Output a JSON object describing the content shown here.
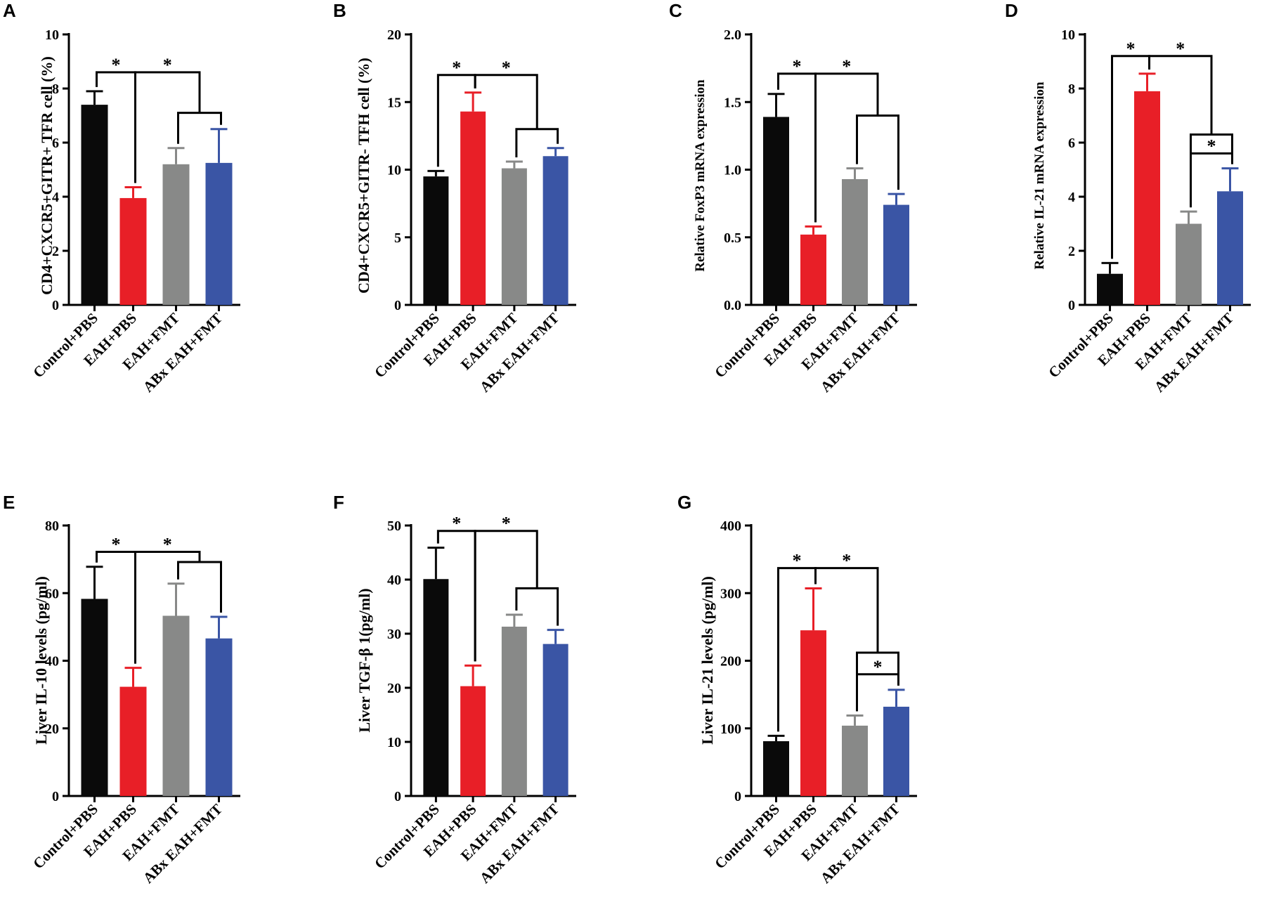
{
  "figure": {
    "colors": {
      "Control+PBS": "#0a0a0a",
      "EAH+PBS": "#e81f27",
      "EAH+FMT": "#888988",
      "ABx EAH+FMT": "#3a55a5"
    }
  },
  "chart_data": [
    {
      "type": "bar",
      "panel": "A",
      "ylabel": "CD4+CXCR5+GITR+ TFR cell (%)",
      "categories": [
        "Control+PBS",
        "EAH+PBS",
        "EAH+FMT",
        "ABx EAH+FMT"
      ],
      "values": [
        7.4,
        3.95,
        5.2,
        5.25
      ],
      "errors": [
        0.5,
        0.4,
        0.6,
        1.25
      ],
      "ylim": [
        0,
        10
      ],
      "ticks": [
        0,
        2,
        4,
        6,
        8,
        10
      ],
      "tick_labels": [
        "0",
        "2",
        "4",
        "6",
        "8",
        "10"
      ],
      "brackets": [
        {
          "from": 0,
          "to": 1,
          "y": 8.6,
          "label": "*"
        },
        {
          "from": 1,
          "to": [
            2,
            3
          ],
          "y": 8.6,
          "inner_y": 7.1,
          "label": "*"
        }
      ]
    },
    {
      "type": "bar",
      "panel": "B",
      "ylabel": "CD4+CXCR5+GITR- TFH cell (%)",
      "categories": [
        "Control+PBS",
        "EAH+PBS",
        "EAH+FMT",
        "ABx EAH+FMT"
      ],
      "values": [
        9.5,
        14.3,
        10.1,
        11.0
      ],
      "errors": [
        0.4,
        1.4,
        0.5,
        0.6
      ],
      "ylim": [
        0,
        20
      ],
      "ticks": [
        0,
        5,
        10,
        15,
        20
      ],
      "tick_labels": [
        "0",
        "5",
        "10",
        "15",
        "20"
      ],
      "brackets": [
        {
          "from": 0,
          "to": 1,
          "y": 17.0,
          "label": "*"
        },
        {
          "from": 1,
          "to": [
            2,
            3
          ],
          "y": 17.0,
          "inner_y": 13.0,
          "label": "*"
        }
      ]
    },
    {
      "type": "bar",
      "panel": "C",
      "ylabel": "Relative FoxP3 mRNA expression",
      "categories": [
        "Control+PBS",
        "EAH+PBS",
        "EAH+FMT",
        "ABx EAH+FMT"
      ],
      "values": [
        1.39,
        0.52,
        0.93,
        0.74
      ],
      "errors": [
        0.17,
        0.06,
        0.08,
        0.08
      ],
      "ylim": [
        0,
        2.0
      ],
      "ticks": [
        0,
        0.5,
        1.0,
        1.5,
        2.0
      ],
      "tick_labels": [
        "0.0",
        "0.5",
        "1.0",
        "1.5",
        "2.0"
      ],
      "brackets": [
        {
          "from": 0,
          "to": 1,
          "y": 1.71,
          "label": "*"
        },
        {
          "from": 1,
          "to": [
            2,
            3
          ],
          "y": 1.71,
          "inner_y": 1.4,
          "label": "*"
        }
      ]
    },
    {
      "type": "bar",
      "panel": "D",
      "ylabel": "Relative IL-21 mRNA expression",
      "categories": [
        "Control+PBS",
        "EAH+PBS",
        "EAH+FMT",
        "ABx EAH+FMT"
      ],
      "values": [
        1.15,
        7.9,
        3.0,
        4.2
      ],
      "errors": [
        0.4,
        0.65,
        0.45,
        0.85
      ],
      "ylim": [
        0,
        10
      ],
      "ticks": [
        0,
        2,
        4,
        6,
        8,
        10
      ],
      "tick_labels": [
        "0",
        "2",
        "4",
        "6",
        "8",
        "10"
      ],
      "brackets": [
        {
          "from": 0,
          "to": 1,
          "y": 9.2,
          "label": "*"
        },
        {
          "from": 1,
          "to": [
            2,
            3
          ],
          "y": 9.2,
          "inner_y": 6.3,
          "label": "*"
        },
        {
          "from": 2,
          "to": 3,
          "y": 5.6,
          "label": "*"
        }
      ]
    },
    {
      "type": "bar",
      "panel": "E",
      "ylabel": "Liver IL-10 levels (pg/ml)",
      "categories": [
        "Control+PBS",
        "EAH+PBS",
        "EAH+FMT",
        "ABx EAH+FMT"
      ],
      "values": [
        58.3,
        32.3,
        53.3,
        46.6
      ],
      "errors": [
        9.5,
        5.6,
        9.5,
        6.4
      ],
      "ylim": [
        0,
        80
      ],
      "ticks": [
        0,
        20,
        40,
        60,
        80
      ],
      "tick_labels": [
        "0",
        "20",
        "40",
        "60",
        "80"
      ],
      "brackets": [
        {
          "from": 0,
          "to": 1,
          "y": 72.2,
          "label": "*"
        },
        {
          "from": 1,
          "to": [
            2,
            3
          ],
          "y": 72.2,
          "inner_y": 69.2,
          "label": "*"
        }
      ]
    },
    {
      "type": "bar",
      "panel": "F",
      "ylabel": "Liver TGF-β 1(pg/ml)",
      "categories": [
        "Control+PBS",
        "EAH+PBS",
        "EAH+FMT",
        "ABx EAH+FMT"
      ],
      "values": [
        40.1,
        20.3,
        31.3,
        28.1
      ],
      "errors": [
        5.8,
        3.8,
        2.2,
        2.6
      ],
      "ylim": [
        0,
        50
      ],
      "ticks": [
        0,
        10,
        20,
        30,
        40,
        50
      ],
      "tick_labels": [
        "0",
        "10",
        "20",
        "30",
        "40",
        "50"
      ],
      "brackets": [
        {
          "from": 0,
          "to": 1,
          "y": 49.0,
          "label": "*"
        },
        {
          "from": 1,
          "to": [
            2,
            3
          ],
          "y": 49.0,
          "inner_y": 38.4,
          "label": "*"
        }
      ]
    },
    {
      "type": "bar",
      "panel": "G",
      "ylabel": "Liver IL-21 levels (pg/ml)",
      "categories": [
        "Control+PBS",
        "EAH+PBS",
        "EAH+FMT",
        "ABx EAH+FMT"
      ],
      "values": [
        81,
        245,
        104,
        132
      ],
      "errors": [
        8,
        62,
        15,
        25
      ],
      "ylim": [
        0,
        400
      ],
      "ticks": [
        0,
        100,
        200,
        300,
        400
      ],
      "tick_labels": [
        "0",
        "100",
        "200",
        "300",
        "400"
      ],
      "brackets": [
        {
          "from": 0,
          "to": 1,
          "y": 337,
          "label": "*"
        },
        {
          "from": 1,
          "to": [
            2,
            3
          ],
          "y": 337,
          "inner_y": 212,
          "label": "*"
        },
        {
          "from": 2,
          "to": 3,
          "y": 180,
          "label": "*"
        }
      ]
    }
  ]
}
